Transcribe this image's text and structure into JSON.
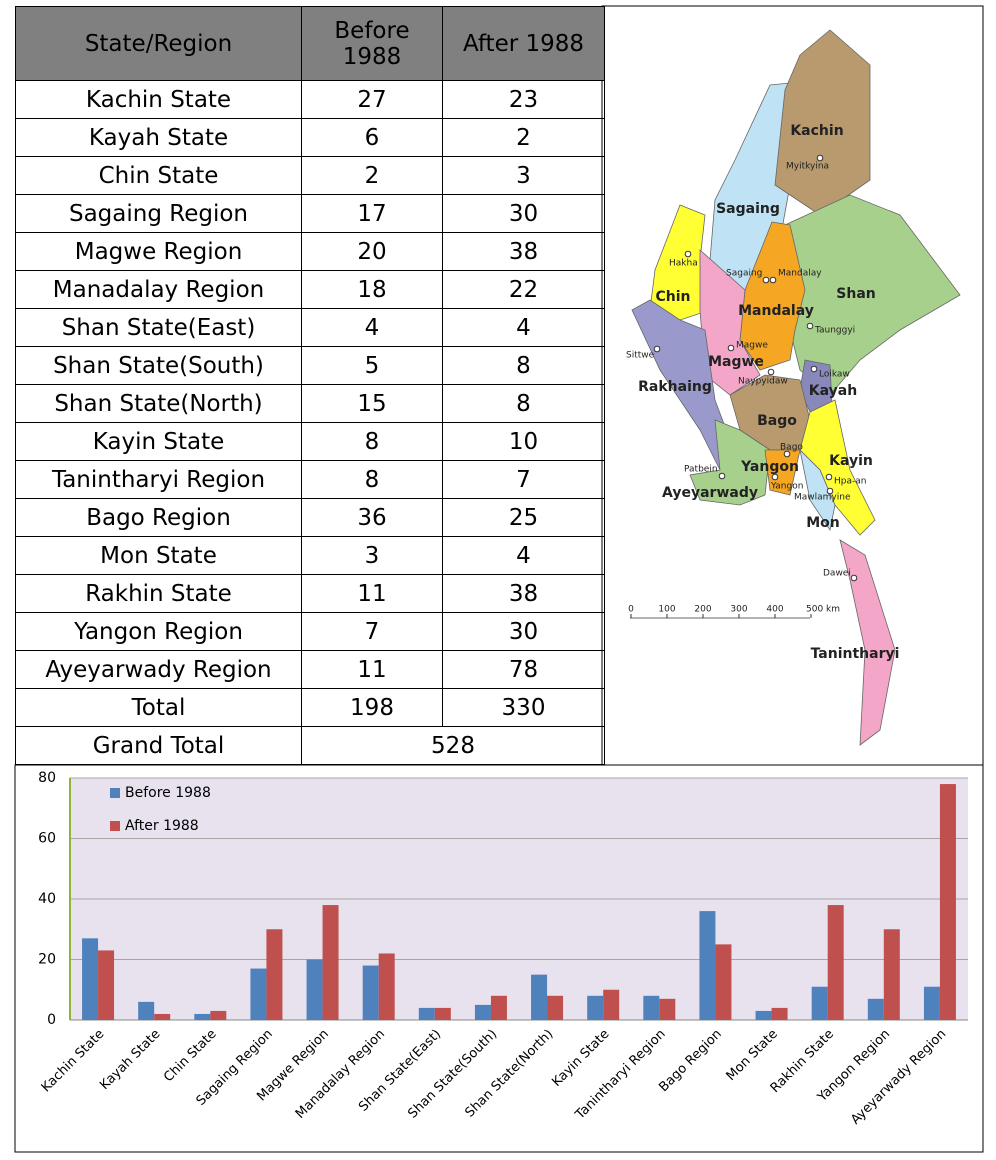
{
  "table": {
    "headers": [
      "State/Region",
      "Before 1988",
      "After 1988"
    ],
    "rows": [
      [
        "Kachin State",
        "27",
        "23"
      ],
      [
        "Kayah State",
        "6",
        "2"
      ],
      [
        "Chin State",
        "2",
        "3"
      ],
      [
        "Sagaing Region",
        "17",
        "30"
      ],
      [
        "Magwe Region",
        "20",
        "38"
      ],
      [
        "Manadalay Region",
        "18",
        "22"
      ],
      [
        "Shan State(East)",
        "4",
        "4"
      ],
      [
        "Shan State(South)",
        "5",
        "8"
      ],
      [
        "Shan State(North)",
        "15",
        "8"
      ],
      [
        "Kayin State",
        "8",
        "10"
      ],
      [
        "Tanintharyi Region",
        "8",
        "7"
      ],
      [
        "Bago Region",
        "36",
        "25"
      ],
      [
        "Mon State",
        "3",
        "4"
      ],
      [
        "Rakhin State",
        "11",
        "38"
      ],
      [
        "Yangon Region",
        "7",
        "30"
      ],
      [
        "Ayeyarwady Region",
        "11",
        "78"
      ],
      [
        "Total",
        "198",
        "330"
      ]
    ],
    "grand_total": [
      "Grand Total",
      "528"
    ]
  },
  "map": {
    "regions": [
      "Kachin",
      "Sagaing",
      "Chin",
      "Shan",
      "Mandalay",
      "Magwe",
      "Rakhaing",
      "Kayah",
      "Bago",
      "Kayin",
      "Yangon",
      "Ayeyarwady",
      "Mon",
      "Tanintharyi"
    ],
    "cities": [
      "Myitkyina",
      "Hakha",
      "Sagaing",
      "Mandalay",
      "Taunggyi",
      "Sittwe",
      "Magwe",
      "Naypyidaw",
      "Loikaw",
      "Bago",
      "Patbein",
      "Hpa-an",
      "Yangon",
      "Mawlamyine",
      "Dawei"
    ],
    "scale": [
      "0",
      "100",
      "200",
      "300",
      "400",
      "500 km"
    ]
  },
  "chart_data": {
    "type": "bar",
    "categories": [
      "Kachin State",
      "Kayah State",
      "Chin State",
      "Sagaing Region",
      "Magwe Region",
      "Manadalay Region",
      "Shan State(East)",
      "Shan State(South)",
      "Shan State(North)",
      "Kayin State",
      "Tanintharyi Region",
      "Bago Region",
      "Mon State",
      "Rakhin State",
      "Yangon Region",
      "Ayeyarwady Region"
    ],
    "series": [
      {
        "name": "Before 1988",
        "color": "#4f81bd",
        "values": [
          27,
          6,
          2,
          17,
          20,
          18,
          4,
          5,
          15,
          8,
          8,
          36,
          3,
          11,
          7,
          11
        ]
      },
      {
        "name": "After 1988",
        "color": "#c0504d",
        "values": [
          23,
          2,
          3,
          30,
          38,
          22,
          4,
          8,
          8,
          10,
          7,
          25,
          4,
          38,
          30,
          78
        ]
      }
    ],
    "ylim": [
      0,
      80
    ],
    "yticks": [
      0,
      20,
      40,
      60,
      80
    ],
    "grid": true,
    "legend": "top-left"
  }
}
